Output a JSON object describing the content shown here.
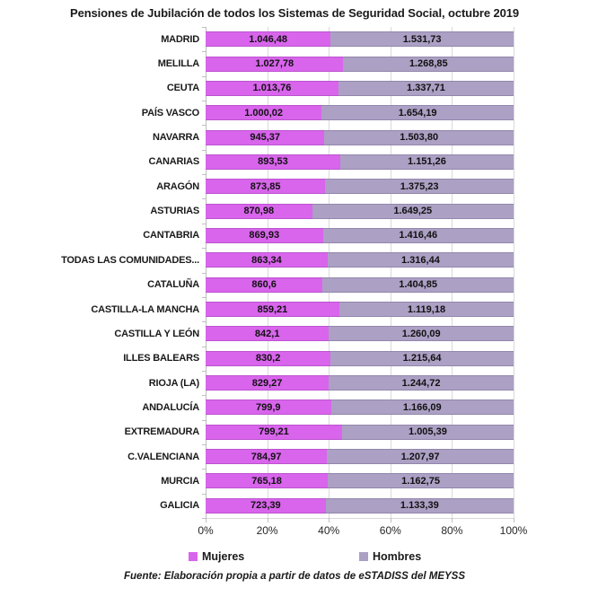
{
  "title": "Pensiones de Jubilación de todos los Sistemas de Seguridad Social, octubre 2019",
  "source_note": "Fuente: Elaboración propia a partir de datos de eSTADISS del MEYSS",
  "colors": {
    "mujeres": "#D865EC",
    "mujeres_border": "#BC53CF",
    "hombres": "#ACA0C4",
    "hombres_border": "#9287AD",
    "gridline": "#D9D9D9",
    "axis": "#BFBFBF"
  },
  "chart_data": {
    "type": "bar",
    "orientation": "horizontal",
    "stacking": "100%",
    "title": "Pensiones de Jubilación de todos los Sistemas de Seguridad Social, octubre 2019",
    "categories": [
      "MADRID",
      "MELILLA",
      "CEUTA",
      "PAÍS VASCO",
      "NAVARRA",
      "CANARIAS",
      "ARAGÓN",
      "ASTURIAS",
      "CANTABRIA",
      "TODAS LAS COMUNIDADES...",
      "CATALUÑA",
      "CASTILLA-LA MANCHA",
      "CASTILLA Y LEÓN",
      "ILLES BALEARS",
      "RIOJA (LA)",
      "ANDALUCÍA",
      "EXTREMADURA",
      "C.VALENCIANA",
      "MURCIA",
      "GALICIA"
    ],
    "series": [
      {
        "name": "Mujeres",
        "color": "#D865EC",
        "values": [
          1046.48,
          1027.78,
          1013.76,
          1000.02,
          945.37,
          893.53,
          873.85,
          870.98,
          869.93,
          863.34,
          860.6,
          859.21,
          842.1,
          830.2,
          829.27,
          799.9,
          799.21,
          784.97,
          765.18,
          723.39
        ],
        "labels": [
          "1.046,48",
          "1.027,78",
          "1.013,76",
          "1.000,02",
          "945,37",
          "893,53",
          "873,85",
          "870,98",
          "869,93",
          "863,34",
          "860,6",
          "859,21",
          "842,1",
          "830,2",
          "829,27",
          "799,9",
          "799,21",
          "784,97",
          "765,18",
          "723,39"
        ]
      },
      {
        "name": "Hombres",
        "color": "#ACA0C4",
        "values": [
          1531.73,
          1268.85,
          1337.71,
          1654.19,
          1503.8,
          1151.26,
          1375.23,
          1649.25,
          1416.46,
          1316.44,
          1404.85,
          1119.18,
          1260.09,
          1215.64,
          1244.72,
          1166.09,
          1005.39,
          1207.97,
          1162.75,
          1133.39
        ],
        "labels": [
          "1.531,73",
          "1.268,85",
          "1.337,71",
          "1.654,19",
          "1.503,80",
          "1.151,26",
          "1.375,23",
          "1.649,25",
          "1.416,46",
          "1.316,44",
          "1.404,85",
          "1.119,18",
          "1.260,09",
          "1.215,64",
          "1.244,72",
          "1.166,09",
          "1.005,39",
          "1.207,97",
          "1.162,75",
          "1.133,39"
        ]
      }
    ],
    "x_ticks": [
      "0%",
      "20%",
      "40%",
      "60%",
      "80%",
      "100%"
    ],
    "x_tick_values": [
      0,
      20,
      40,
      60,
      80,
      100
    ],
    "xlim": [
      0,
      100
    ],
    "grid": true,
    "legend_position": "bottom"
  }
}
